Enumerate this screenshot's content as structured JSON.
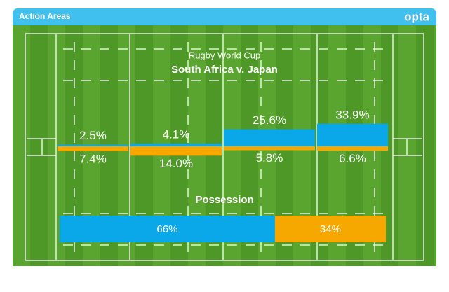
{
  "header": {
    "title": "Action Areas",
    "logo": "opta"
  },
  "chart_data": [
    {
      "type": "bar",
      "title": "Rugby World Cup",
      "subtitle": "South Africa v. Japan",
      "categories": [
        null,
        null,
        null,
        null
      ],
      "series": [
        {
          "color": "#0aa8e8",
          "values": [
            2.5,
            4.1,
            25.6,
            33.9
          ],
          "value_labels": [
            "2.5%",
            "4.1%",
            "25.6%",
            "33.9%"
          ]
        },
        {
          "color": "#f6a800",
          "values": [
            7.4,
            14.0,
            5.8,
            6.6
          ],
          "value_labels": [
            "7.4%",
            "14.0%",
            "5.8%",
            "6.6%"
          ]
        }
      ]
    },
    {
      "type": "stacked",
      "title": "Possession",
      "series": [
        {
          "color": "#0aa8e8",
          "values": [
            66
          ],
          "value_labels": [
            "66%"
          ]
        },
        {
          "color": "#f6a800",
          "values": [
            34
          ],
          "value_labels": [
            "34%"
          ]
        }
      ]
    }
  ]
}
